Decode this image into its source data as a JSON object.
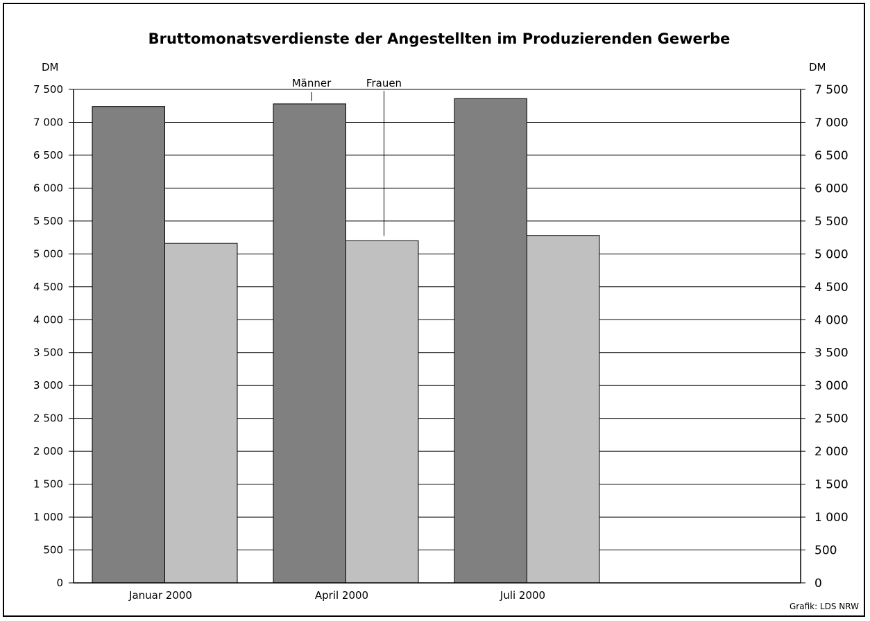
{
  "chart_data": {
    "type": "bar",
    "title": "Bruttomonatsverdienste der Angestellten im Produzierenden Gewerbe",
    "unit_left": "DM",
    "unit_right": "DM",
    "categories": [
      "Januar 2000",
      "April 2000",
      "Juli 2000"
    ],
    "series": [
      {
        "name": "Männer",
        "color": "#808080",
        "values": [
          7240,
          7280,
          7360
        ]
      },
      {
        "name": "Frauen",
        "color": "#c0c0c0",
        "values": [
          5160,
          5200,
          5280
        ]
      }
    ],
    "ylim": [
      0,
      7500
    ],
    "ytick_labels": [
      "0",
      "500",
      "1 000",
      "1 500",
      "2 000",
      "2 500",
      "3 000",
      "3 500",
      "4 000",
      "4 500",
      "5 000",
      "5 500",
      "6 000",
      "6 500",
      "7 000",
      "7 500"
    ],
    "grid": true,
    "legend": "annotation labels above the April 2000 bars"
  },
  "credit": "Grafik: LDS NRW"
}
